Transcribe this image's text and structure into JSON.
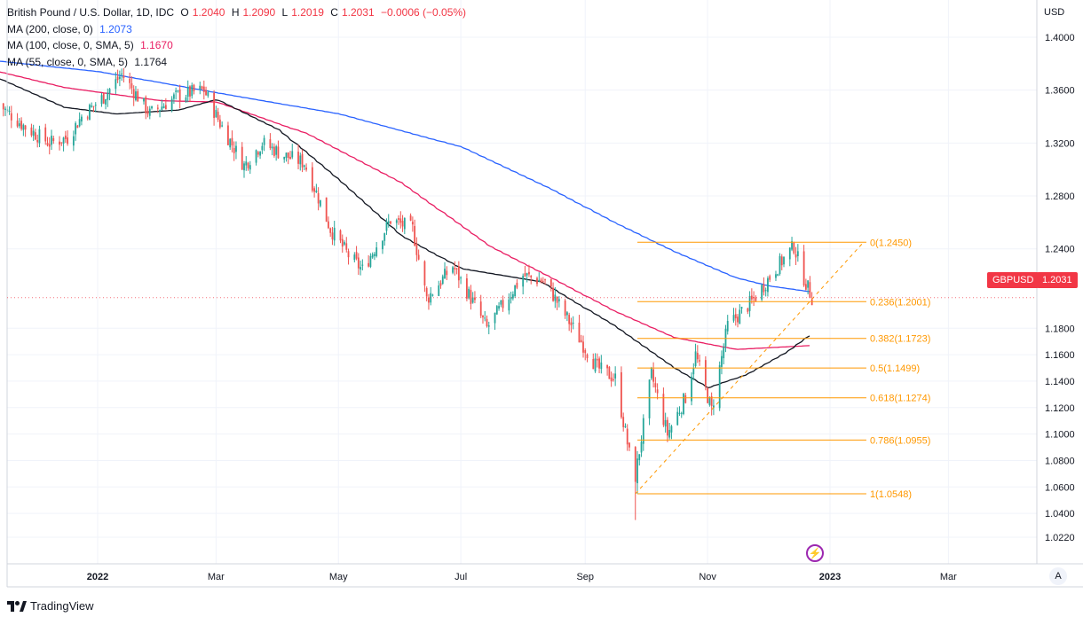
{
  "header": {
    "symbol": "British Pound / U.S. Dollar, 1D, IDC",
    "ohlc": [
      {
        "label": "O",
        "value": "1.2040"
      },
      {
        "label": "H",
        "value": "1.2090"
      },
      {
        "label": "L",
        "value": "1.2019"
      },
      {
        "label": "C",
        "value": "1.2031"
      }
    ],
    "change": "−0.0006 (−0.05%)"
  },
  "indicators": [
    {
      "label": "MA (200, close, 0)",
      "value": "1.2073",
      "color": "#2962ff"
    },
    {
      "label": "MA (100, close, 0, SMA, 5)",
      "value": "1.1670",
      "color": "#e91e63"
    },
    {
      "label": "MA (55, close, 0, SMA, 5)",
      "value": "1.1764",
      "color": "#131722"
    }
  ],
  "price_axis": {
    "currency": "USD",
    "last_symbol": "GBPUSD",
    "last_price": "1.2031",
    "last_color": "#f23645"
  },
  "buttons": {
    "auto": "A"
  },
  "branding": {
    "name": "TradingView"
  },
  "colors": {
    "up": "#26a69a",
    "down": "#ef5350",
    "fib": "#ff9800",
    "grid": "#f0f3fa"
  },
  "chart_data": {
    "type": "candlestick",
    "y_range": [
      1.008,
      1.4196
    ],
    "y_ticks": [
      "1.4000",
      "1.3600",
      "1.3200",
      "1.2800",
      "1.2400",
      "1.1800",
      "1.1600",
      "1.1400",
      "1.1200",
      "1.1000",
      "1.0800",
      "1.0600",
      "1.0400",
      "1.0220"
    ],
    "x_ticks": [
      {
        "label": "2022",
        "date": "2022-01-01",
        "bold": true
      },
      {
        "label": "Mar",
        "date": "2022-03-01",
        "bold": false
      },
      {
        "label": "May",
        "date": "2022-05-01",
        "bold": false
      },
      {
        "label": "Jul",
        "date": "2022-07-01",
        "bold": false
      },
      {
        "label": "Sep",
        "date": "2022-09-01",
        "bold": false
      },
      {
        "label": "Nov",
        "date": "2022-11-01",
        "bold": false
      },
      {
        "label": "2023",
        "date": "2023-01-01",
        "bold": true
      },
      {
        "label": "Mar",
        "date": "2023-03-01",
        "bold": false
      }
    ],
    "close_path": [
      [
        "2021-11-12",
        1.35
      ],
      [
        "2021-11-26",
        1.332
      ],
      [
        "2021-12-08",
        1.32
      ],
      [
        "2021-12-17",
        1.324
      ],
      [
        "2021-12-24",
        1.34
      ],
      [
        "2022-01-04",
        1.355
      ],
      [
        "2022-01-13",
        1.372
      ],
      [
        "2022-01-21",
        1.355
      ],
      [
        "2022-01-27",
        1.342
      ],
      [
        "2022-02-10",
        1.356
      ],
      [
        "2022-02-23",
        1.36
      ],
      [
        "2022-03-03",
        1.335
      ],
      [
        "2022-03-15",
        1.303
      ],
      [
        "2022-03-24",
        1.32
      ],
      [
        "2022-04-05",
        1.31
      ],
      [
        "2022-04-14",
        1.305
      ],
      [
        "2022-04-22",
        1.275
      ],
      [
        "2022-04-27",
        1.255
      ],
      [
        "2022-05-06",
        1.235
      ],
      [
        "2022-05-13",
        1.224
      ],
      [
        "2022-05-27",
        1.262
      ],
      [
        "2022-06-07",
        1.255
      ],
      [
        "2022-06-14",
        1.202
      ],
      [
        "2022-06-27",
        1.227
      ],
      [
        "2022-07-07",
        1.2
      ],
      [
        "2022-07-14",
        1.18
      ],
      [
        "2022-08-01",
        1.22
      ],
      [
        "2022-08-12",
        1.215
      ],
      [
        "2022-08-26",
        1.18
      ],
      [
        "2022-09-07",
        1.15
      ],
      [
        "2022-09-16",
        1.142
      ],
      [
        "2022-09-23",
        1.085
      ],
      [
        "2022-09-26",
        1.068
      ],
      [
        "2022-10-04",
        1.145
      ],
      [
        "2022-10-12",
        1.1
      ],
      [
        "2022-10-21",
        1.128
      ],
      [
        "2022-10-26",
        1.16
      ],
      [
        "2022-11-03",
        1.118
      ],
      [
        "2022-11-11",
        1.182
      ],
      [
        "2022-11-23",
        1.2
      ],
      [
        "2022-12-05",
        1.225
      ],
      [
        "2022-12-14",
        1.242
      ],
      [
        "2022-12-19",
        1.218
      ],
      [
        "2022-12-23",
        1.2031
      ]
    ],
    "spikes": [
      {
        "date": "2022-09-26",
        "low": 1.035
      },
      {
        "date": "2022-09-27",
        "low": 1.055
      },
      {
        "date": "2022-11-03",
        "low": 1.114
      }
    ],
    "moving_averages": [
      {
        "name": "MA (200, close, 0)",
        "color": "#2962ff",
        "points": [
          [
            "2021-11-12",
            1.382
          ],
          [
            "2022-01-01",
            1.374
          ],
          [
            "2022-03-01",
            1.358
          ],
          [
            "2022-05-01",
            1.342
          ],
          [
            "2022-07-01",
            1.317
          ],
          [
            "2022-08-15",
            1.285
          ],
          [
            "2022-09-15",
            1.26
          ],
          [
            "2022-10-15",
            1.238
          ],
          [
            "2022-11-15",
            1.218
          ],
          [
            "2022-12-01",
            1.212
          ],
          [
            "2022-12-23",
            1.2073
          ]
        ]
      },
      {
        "name": "MA (100, close, 0, SMA, 5)",
        "color": "#e91e63",
        "points": [
          [
            "2021-11-12",
            1.374
          ],
          [
            "2021-12-15",
            1.362
          ],
          [
            "2022-02-01",
            1.352
          ],
          [
            "2022-03-01",
            1.351
          ],
          [
            "2022-04-15",
            1.327
          ],
          [
            "2022-06-01",
            1.29
          ],
          [
            "2022-07-15",
            1.242
          ],
          [
            "2022-08-15",
            1.218
          ],
          [
            "2022-09-15",
            1.193
          ],
          [
            "2022-10-15",
            1.173
          ],
          [
            "2022-11-15",
            1.164
          ],
          [
            "2022-12-23",
            1.167
          ]
        ]
      },
      {
        "name": "MA (55, close, 0, SMA, 5)",
        "color": "#131722",
        "points": [
          [
            "2021-11-12",
            1.369
          ],
          [
            "2021-12-15",
            1.347
          ],
          [
            "2022-01-10",
            1.342
          ],
          [
            "2022-02-10",
            1.345
          ],
          [
            "2022-03-01",
            1.353
          ],
          [
            "2022-04-01",
            1.33
          ],
          [
            "2022-05-01",
            1.292
          ],
          [
            "2022-06-01",
            1.25
          ],
          [
            "2022-07-01",
            1.225
          ],
          [
            "2022-08-10",
            1.215
          ],
          [
            "2022-09-15",
            1.182
          ],
          [
            "2022-10-15",
            1.15
          ],
          [
            "2022-11-01",
            1.135
          ],
          [
            "2022-11-20",
            1.145
          ],
          [
            "2022-12-10",
            1.162
          ],
          [
            "2022-12-23",
            1.1764
          ]
        ]
      }
    ],
    "fibonacci": {
      "start_date": "2022-09-27",
      "end_date": "2022-12-14",
      "label_date": "2023-01-20",
      "anchor_low_date": "2022-09-26",
      "trend_end_date": "2022-12-31",
      "levels": [
        {
          "label": "0(1.2450)",
          "value": 1.245
        },
        {
          "label": "0.236(1.2001)",
          "value": 1.2001
        },
        {
          "label": "0.382(1.1723)",
          "value": 1.1723
        },
        {
          "label": "0.5(1.1499)",
          "value": 1.1499
        },
        {
          "label": "0.618(1.1274)",
          "value": 1.1274
        },
        {
          "label": "0.786(1.0955)",
          "value": 1.0955
        },
        {
          "label": "1(1.0548)",
          "value": 1.0548
        }
      ]
    }
  }
}
